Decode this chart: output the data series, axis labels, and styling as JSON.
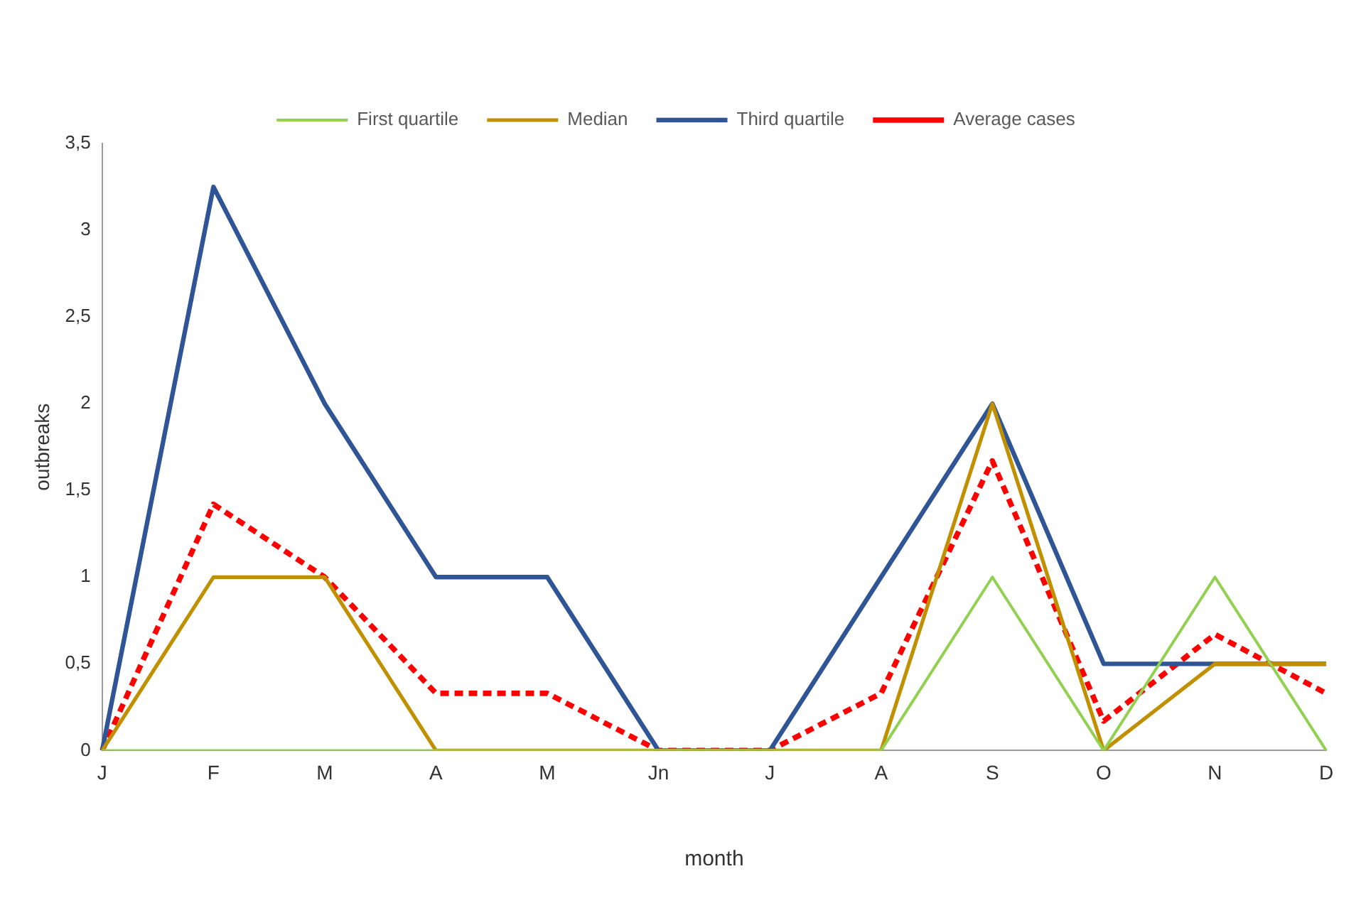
{
  "chart_data": {
    "type": "line",
    "xlabel": "month",
    "ylabel": "outbreaks",
    "categories": [
      "J",
      "F",
      "M",
      "A",
      "M",
      "Jn",
      "J",
      "A",
      "S",
      "O",
      "N",
      "D"
    ],
    "series": [
      {
        "name": "First quartile",
        "color": "#92d050",
        "values": [
          0,
          0,
          0,
          0,
          0,
          0,
          0,
          0,
          1,
          0,
          1,
          0
        ]
      },
      {
        "name": "Median",
        "color": "#c09000",
        "values": [
          0,
          1,
          1,
          0,
          0,
          0,
          0,
          0,
          2,
          0,
          0.5,
          0.5
        ]
      },
      {
        "name": "Third quartile",
        "color": "#2f5597",
        "values": [
          0,
          3.25,
          2,
          1,
          1,
          0,
          0,
          1,
          2,
          0.5,
          0.5,
          0.5
        ]
      },
      {
        "name": "Average cases",
        "color": "#ff0000",
        "line_style": "dashed",
        "values": [
          0,
          1.42,
          1,
          0.33,
          0.33,
          0,
          0,
          0.33,
          1.67,
          0.17,
          0.67,
          0.33
        ]
      }
    ],
    "ylim": [
      0,
      3.5
    ],
    "yticks": [
      0,
      {
        "value": 0.5,
        "label": "0,5"
      },
      1,
      {
        "value": 1.5,
        "label": "1,5"
      },
      2,
      {
        "value": 2.5,
        "label": "2,5"
      },
      3,
      {
        "value": 3.5,
        "label": "3,5"
      }
    ],
    "grid": false,
    "legend": "top",
    "marker": "none"
  }
}
